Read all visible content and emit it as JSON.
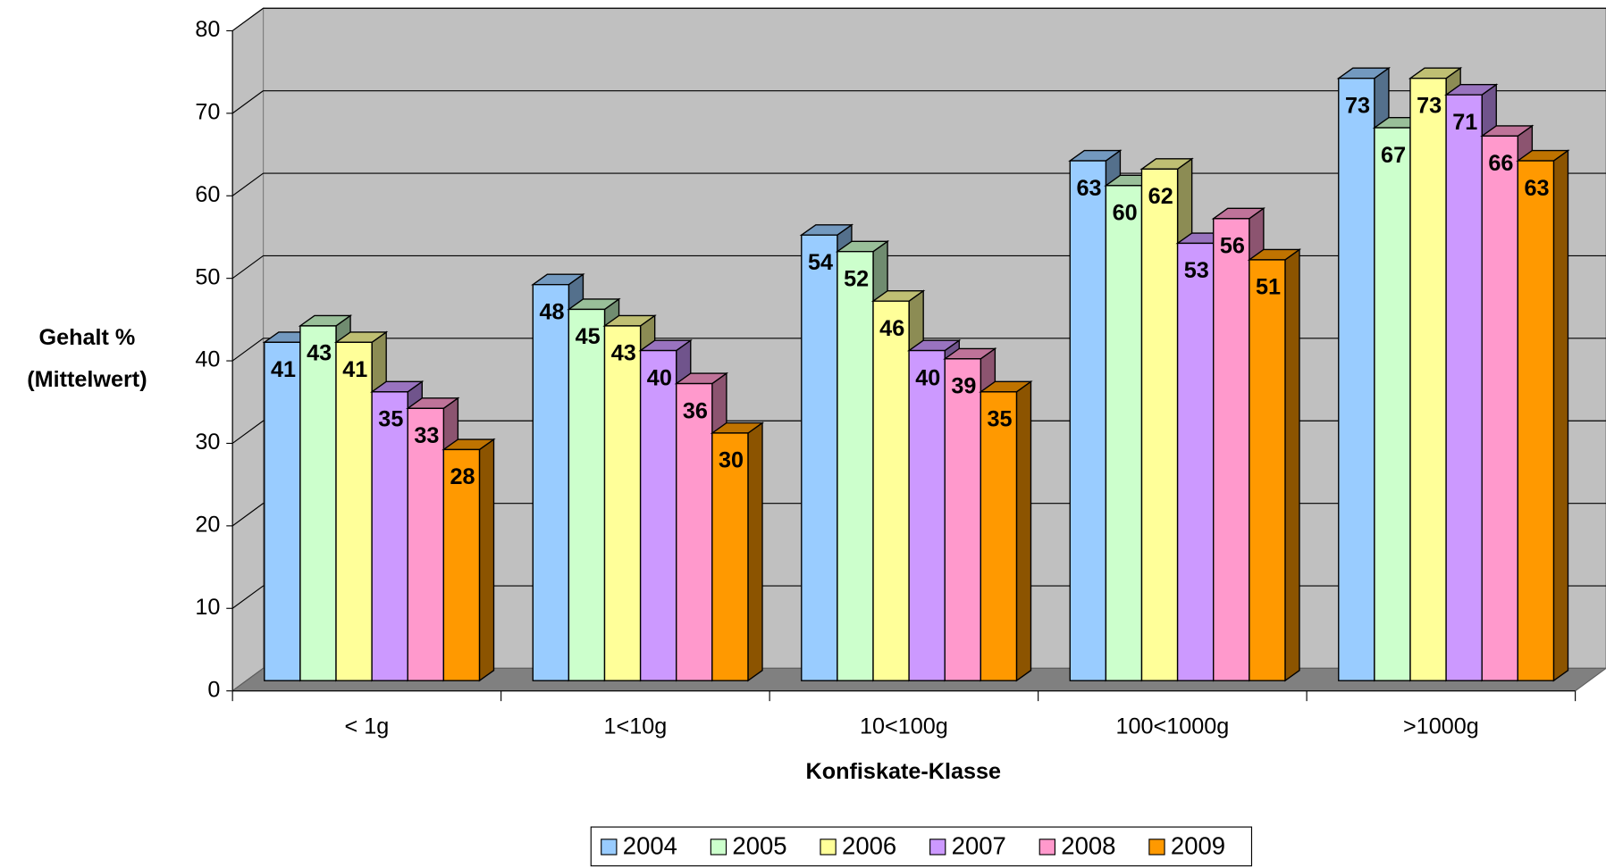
{
  "chart_data": {
    "type": "bar3d",
    "y_label": [
      "Gehalt %",
      "(Mittelwert)"
    ],
    "x_label": "Konfiskate-Klasse",
    "categories": [
      "< 1g",
      "1<10g",
      "10<100g",
      "100<1000g",
      ">1000g"
    ],
    "series": [
      {
        "name": "2004",
        "color": "#99ccff",
        "values": [
          41,
          48,
          54,
          63,
          73
        ]
      },
      {
        "name": "2005",
        "color": "#ccffcc",
        "values": [
          43,
          45,
          52,
          60,
          67
        ]
      },
      {
        "name": "2006",
        "color": "#ffff99",
        "values": [
          41,
          43,
          46,
          62,
          73
        ]
      },
      {
        "name": "2007",
        "color": "#cc99ff",
        "values": [
          35,
          40,
          40,
          53,
          71
        ]
      },
      {
        "name": "2008",
        "color": "#ff99cc",
        "values": [
          33,
          36,
          39,
          56,
          66
        ]
      },
      {
        "name": "2009",
        "color": "#ff9900",
        "values": [
          28,
          30,
          35,
          51,
          63
        ]
      }
    ],
    "ylim": [
      0,
      80
    ],
    "yticks": [
      0,
      10,
      20,
      30,
      40,
      50,
      60,
      70,
      80
    ],
    "grid": true,
    "legend": "bottom"
  }
}
